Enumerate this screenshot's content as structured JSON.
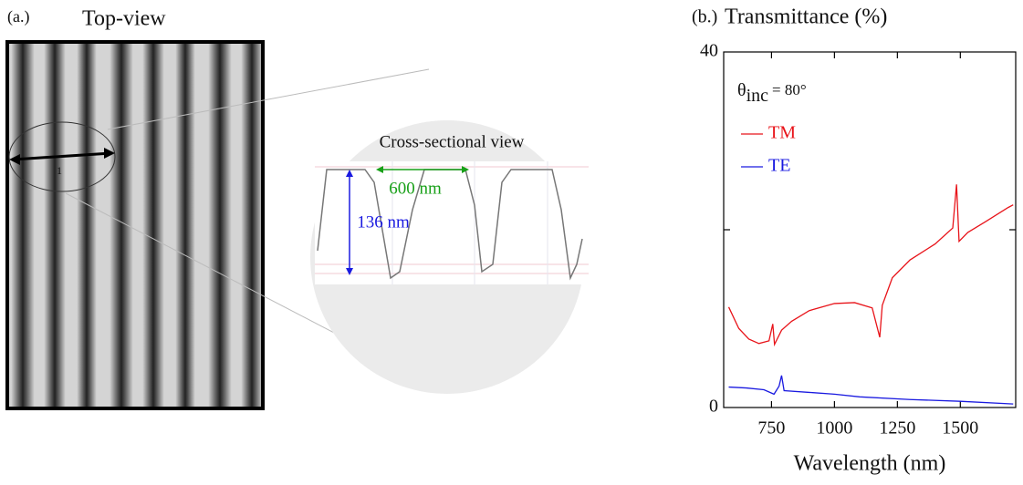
{
  "panel_a": {
    "label": "(a.)",
    "title": "Top-view",
    "marker": "1",
    "inset": {
      "title": "Cross-sectional view",
      "period": "600 nm",
      "depth": "136 nm"
    }
  },
  "chart_data": {
    "type": "line",
    "label": "(b.)",
    "title": "Transmittance (%)",
    "xlabel": "Wavelength (nm)",
    "annotation": {
      "symbol": "θ",
      "subscript": "inc",
      "text": "= 80°"
    },
    "xlim": [
      560,
      1720
    ],
    "xticks": [
      750,
      1000,
      1250,
      1500
    ],
    "ylim": [
      0,
      40
    ],
    "yticks": [
      0,
      40
    ],
    "yminor": [
      20
    ],
    "series": [
      {
        "name": "TM",
        "color": "#e8141a",
        "x": [
          580,
          620,
          660,
          700,
          740,
          755,
          762,
          790,
          830,
          900,
          1000,
          1080,
          1150,
          1180,
          1190,
          1230,
          1300,
          1400,
          1470,
          1485,
          1495,
          1530,
          1600,
          1690,
          1710
        ],
        "values": [
          11.3,
          8.9,
          7.7,
          7.2,
          7.5,
          9.4,
          7.1,
          8.7,
          9.7,
          10.9,
          11.7,
          11.8,
          11.2,
          7.9,
          11.5,
          14.6,
          16.6,
          18.4,
          20.2,
          25.1,
          18.7,
          19.7,
          20.9,
          22.5,
          22.8
        ]
      },
      {
        "name": "TE",
        "color": "#1a1ae0",
        "x": [
          580,
          650,
          720,
          760,
          780,
          790,
          800,
          900,
          1000,
          1100,
          1300,
          1500,
          1710
        ],
        "values": [
          2.3,
          2.2,
          2.0,
          1.5,
          2.4,
          3.6,
          1.9,
          1.7,
          1.5,
          1.2,
          0.9,
          0.7,
          0.4
        ]
      }
    ]
  }
}
